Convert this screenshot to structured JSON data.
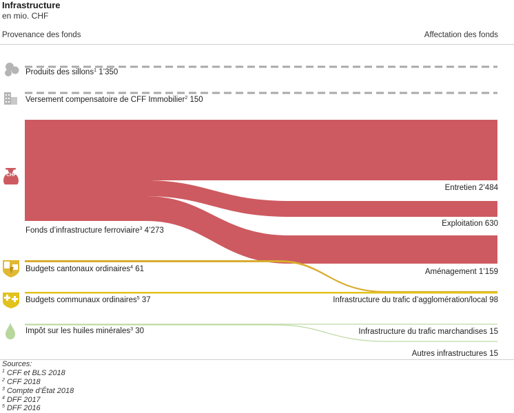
{
  "header": {
    "title": "Infrastructure",
    "subtitle": "en mio. CHF"
  },
  "columns": {
    "left": "Provenance des fonds",
    "right": "Affectation des fonds"
  },
  "sources_in": [
    {
      "label": "Produits des sillons",
      "note": "1",
      "value": "1’350",
      "icon": "circles-icon"
    },
    {
      "label": "Versement compensatoire de CFF Immobilier",
      "note": "2",
      "value": "150",
      "icon": "building-icon"
    },
    {
      "label": "Fonds d’infrastructure ferroviaire",
      "note": "3",
      "value": "4’273",
      "icon": "money-bag-icon",
      "icon_text": "CHF"
    },
    {
      "label": "Budgets cantonaux ordinaires",
      "note": "4",
      "value": "61",
      "icon": "canton-shield-icon"
    },
    {
      "label": "Budgets communaux ordinaires",
      "note": "5",
      "value": "37",
      "icon": "commune-shield-icon"
    },
    {
      "label": "Impôt sur les huiles minérales",
      "note": "3",
      "value": "30",
      "icon": "oil-drop-icon"
    }
  ],
  "destinations": [
    {
      "label": "Entretien 2’484"
    },
    {
      "label": "Exploitation 630"
    },
    {
      "label": "Aménagement 1’159"
    },
    {
      "label": "Infrastructure du trafic d’agglomération/local 98"
    },
    {
      "label": "Infrastructure du trafic marchandises 15"
    },
    {
      "label": "Autres infrastructures 15"
    }
  ],
  "footnotes": {
    "heading": "Sources:",
    "items": [
      {
        "note": "1",
        "text": "CFF et BLS 2018"
      },
      {
        "note": "2",
        "text": "CFF 2018"
      },
      {
        "note": "3",
        "text": "Compte d’État 2018"
      },
      {
        "note": "4",
        "text": "DFF 2017"
      },
      {
        "note": "5",
        "text": "DFF 2016"
      }
    ]
  },
  "colors": {
    "fund_flow": "#cd5a60",
    "canton_flow": "#d9ac2f",
    "commune_flow": "#e2c21c",
    "oil_flow": "#bcd9a4",
    "dashed": "#a9a9a9",
    "icon_grey": "#b5b5b5"
  }
}
